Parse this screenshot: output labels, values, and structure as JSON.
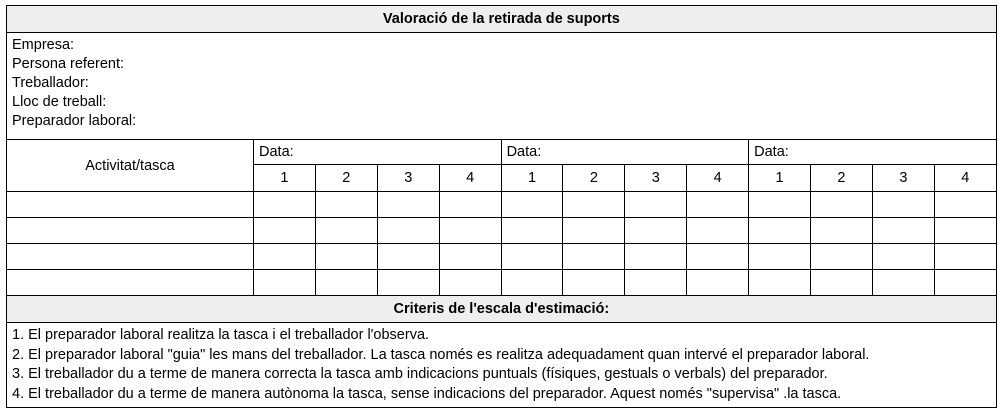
{
  "title": "Valoració de la retirada de suports",
  "info_fields": [
    "Empresa:",
    "Persona referent:",
    "Treballador:",
    "Lloc de treball:",
    "Preparador laboral:"
  ],
  "activity_header": "Activitat/tasca",
  "date_label": "Data:",
  "date_groups": 3,
  "scale_numbers": [
    "1",
    "2",
    "3",
    "4"
  ],
  "data_rows": 4,
  "criteria_title": "Criteris de l'escala d'estimació:",
  "criteria": [
    "1. El preparador laboral realitza la tasca i el treballador l'observa.",
    "2. El preparador laboral \"guia\" les mans del treballador. La tasca només es realitza adequadament quan intervé el preparador laboral.",
    "3. El treballador du a terme de manera correcta la tasca amb indicacions puntuals (físiques, gestuals o verbals) del preparador.",
    "4. El treballador du a terme de manera autònoma la tasca, sense indicacions del preparador. Aquest només \"supervisa\" .la tasca."
  ],
  "header_bg": "#eeeeee"
}
